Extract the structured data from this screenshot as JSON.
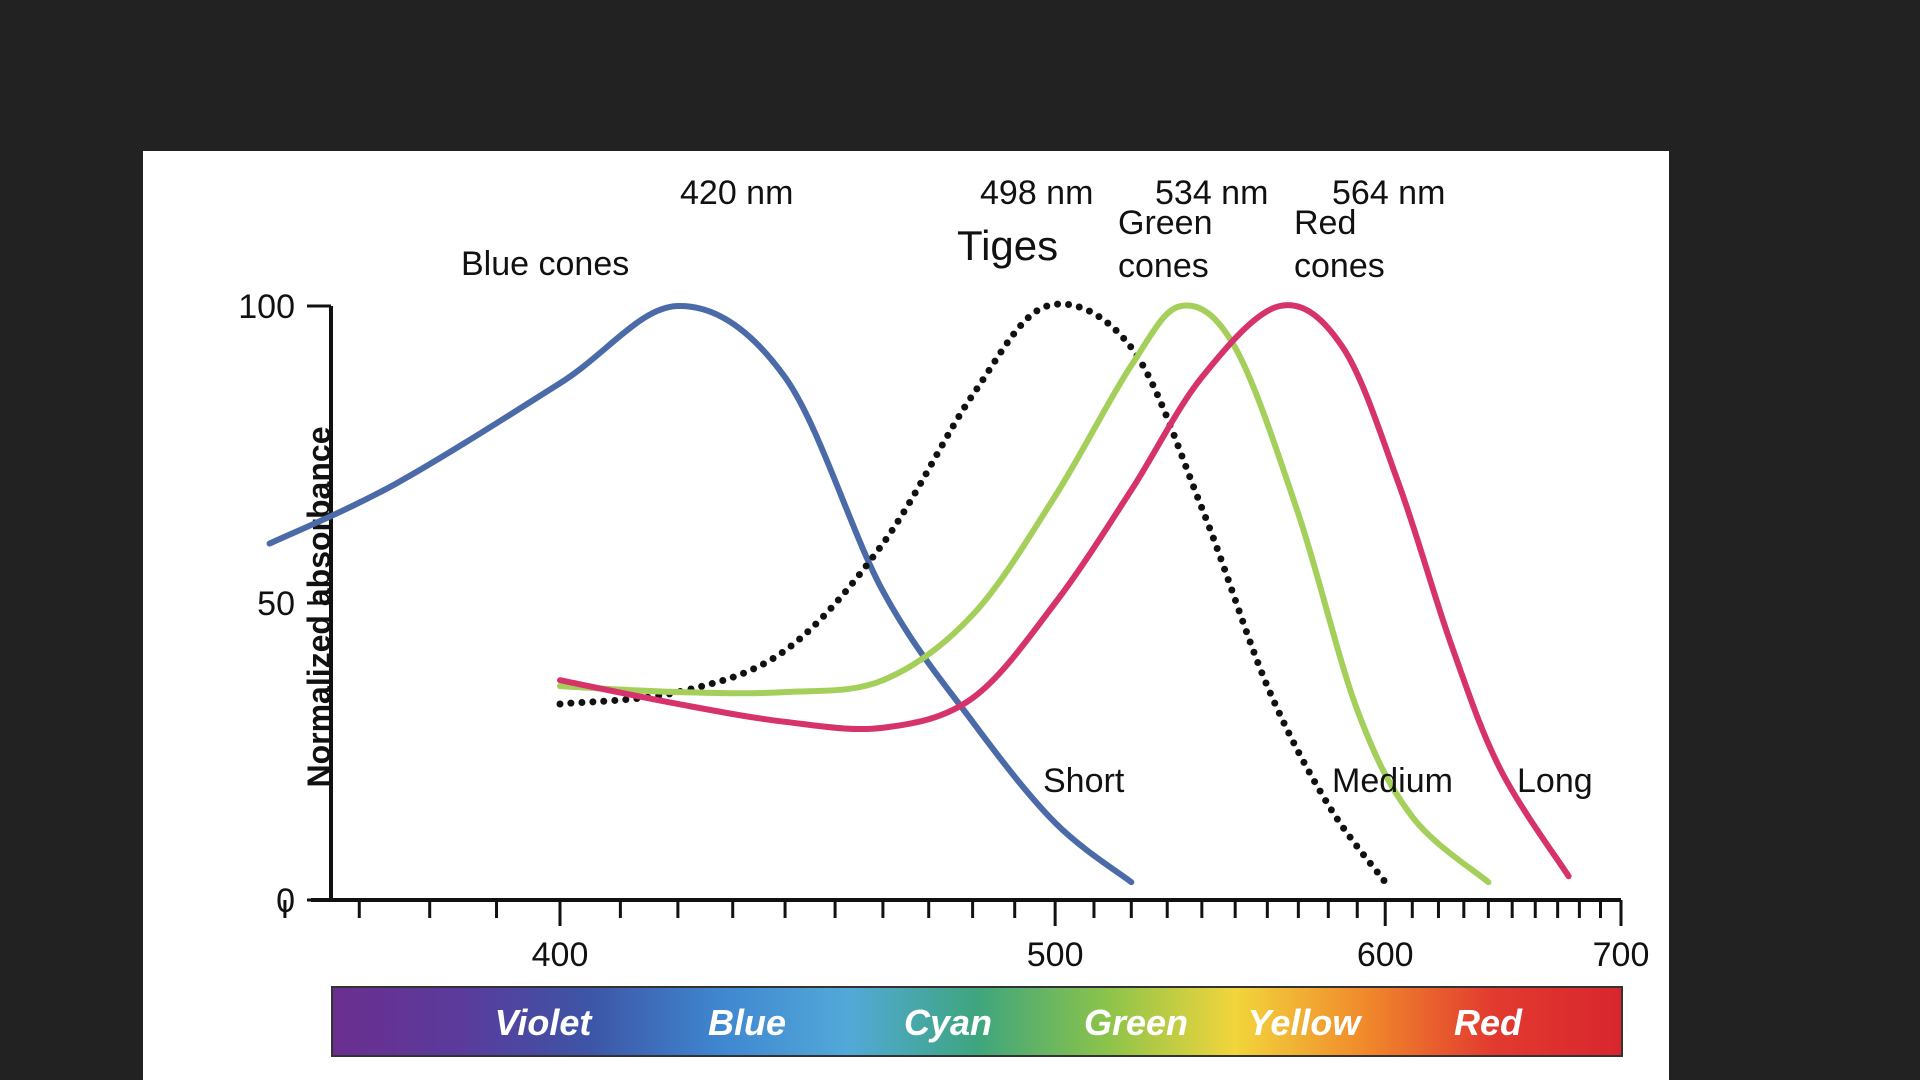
{
  "chart_data": {
    "type": "line",
    "ylabel": "Normalized absorbance",
    "xlabel": "",
    "ylim": [
      0,
      100
    ],
    "yticks": [
      {
        "value": 0,
        "label": "0"
      },
      {
        "value": 50,
        "label": "50"
      },
      {
        "value": 100,
        "label": "100"
      }
    ],
    "xticks_labeled": [
      {
        "value": 400,
        "label": "400"
      },
      {
        "value": 500,
        "label": "500"
      },
      {
        "value": 600,
        "label": "600"
      },
      {
        "value": 700,
        "label": "700"
      }
    ],
    "x_scale": "reciprocal",
    "grid": false,
    "peak_labels": [
      {
        "wavelength": 420,
        "text": "420 nm"
      },
      {
        "wavelength": 498,
        "text": "498 nm"
      },
      {
        "wavelength": 534,
        "text": "534 nm"
      },
      {
        "wavelength": 564,
        "text": "564 nm"
      }
    ],
    "series": [
      {
        "name": "Blue cones",
        "end_label": "Short",
        "color": "#4a6aa8",
        "style": "solid",
        "x": [
          358,
          375,
          400,
          420,
          440,
          460,
          480,
          500,
          520
        ],
        "y": [
          60,
          70,
          87,
          100,
          88,
          52,
          30,
          13,
          3
        ]
      },
      {
        "name": "Tiges",
        "end_label": "",
        "color": "#111111",
        "style": "dotted",
        "x": [
          400,
          420,
          440,
          460,
          480,
          498,
          520,
          540,
          560,
          580,
          600
        ],
        "y": [
          33,
          35,
          42,
          60,
          85,
          100,
          93,
          66,
          36,
          16,
          3
        ]
      },
      {
        "name": "Green cones",
        "end_label": "Medium",
        "color": "#a4cf5a",
        "style": "solid",
        "x": [
          400,
          420,
          440,
          460,
          480,
          500,
          520,
          534,
          550,
          570,
          590,
          610,
          640
        ],
        "y": [
          36,
          35,
          35,
          37,
          48,
          68,
          90,
          100,
          93,
          65,
          32,
          14,
          3
        ]
      },
      {
        "name": "Red cones",
        "end_label": "Long",
        "color": "#d6336c",
        "style": "solid",
        "x": [
          400,
          420,
          440,
          460,
          480,
          500,
          520,
          540,
          564,
          585,
          605,
          625,
          645,
          675
        ],
        "y": [
          37,
          33,
          30,
          29,
          34,
          50,
          69,
          88,
          100,
          93,
          70,
          43,
          22,
          4
        ]
      }
    ],
    "spectrum_bar": {
      "labels": [
        "Violet",
        "Blue",
        "Cyan",
        "Green",
        "Yellow",
        "Red"
      ],
      "colors": [
        "#6b2e8f",
        "#5a3b9c",
        "#3d55a6",
        "#3f86cf",
        "#52a9d9",
        "#3ea57e",
        "#8bc34a",
        "#f2d53c",
        "#f08a2b",
        "#e23a2f",
        "#d8262e"
      ]
    }
  }
}
